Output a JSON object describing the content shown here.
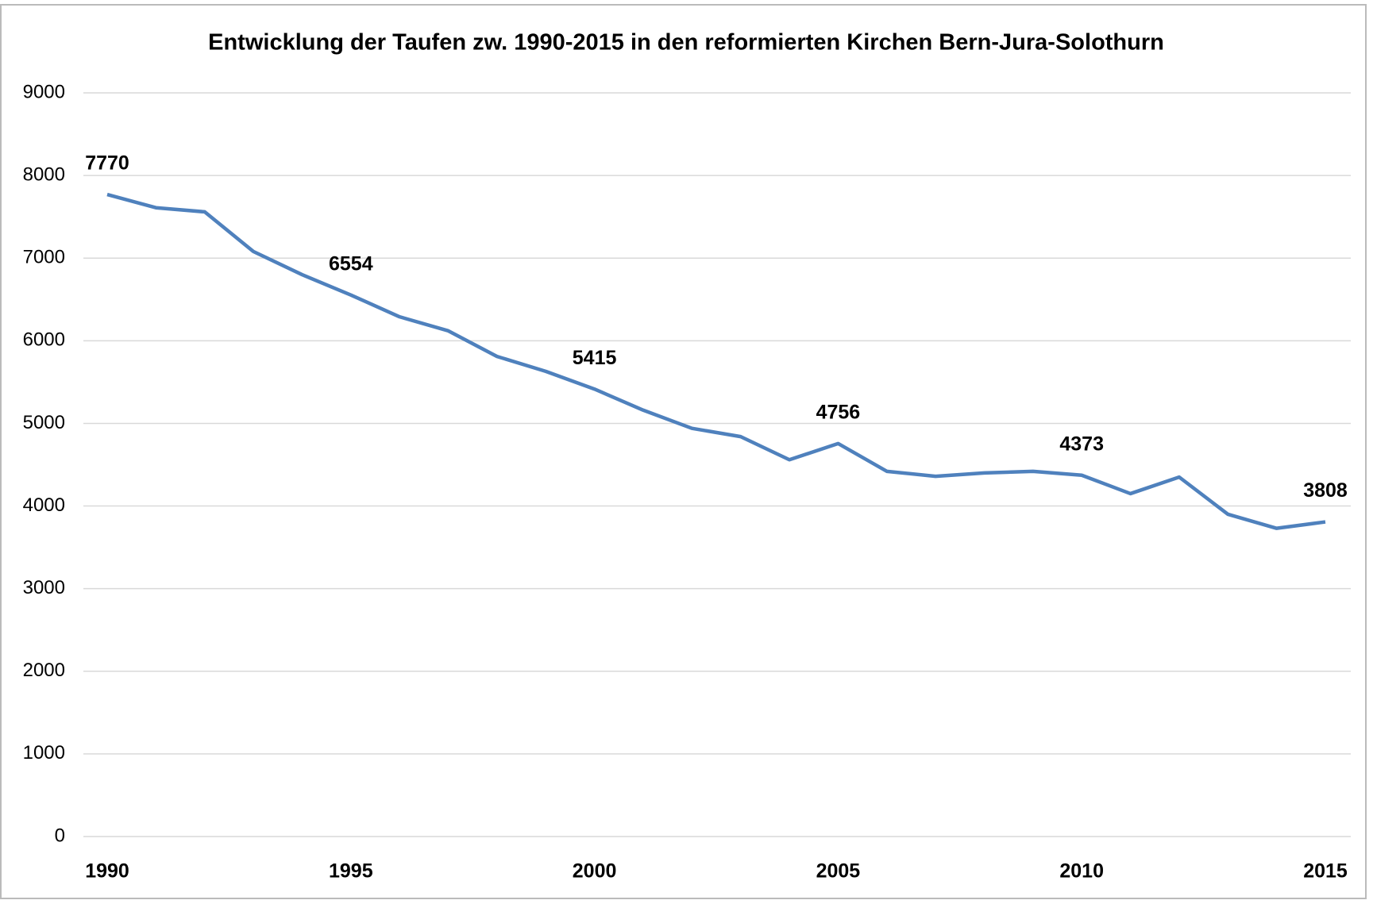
{
  "chart_data": {
    "type": "line",
    "title": "Entwicklung der Taufen zw. 1990-2015 in den reformierten Kirchen Bern-Jura-Solothurn",
    "x": [
      1990,
      1991,
      1992,
      1993,
      1994,
      1995,
      1996,
      1997,
      1998,
      1999,
      2000,
      2001,
      2002,
      2003,
      2004,
      2005,
      2006,
      2007,
      2008,
      2009,
      2010,
      2011,
      2012,
      2013,
      2014,
      2015
    ],
    "series": [
      {
        "name": "Taufen",
        "color": "#4f81bd",
        "values": [
          7770,
          7610,
          7560,
          7080,
          6800,
          6554,
          6290,
          6120,
          5810,
          5630,
          5415,
          5160,
          4940,
          4840,
          4560,
          4756,
          4420,
          4360,
          4400,
          4420,
          4373,
          4150,
          4350,
          3900,
          3730,
          3808
        ]
      }
    ],
    "xlim": [
      1990,
      2015
    ],
    "xticks": [
      1990,
      1995,
      2000,
      2005,
      2010,
      2015
    ],
    "ylim": [
      0,
      9000
    ],
    "yticks": [
      0,
      1000,
      2000,
      3000,
      4000,
      5000,
      6000,
      7000,
      8000,
      9000
    ],
    "grid": true
  }
}
